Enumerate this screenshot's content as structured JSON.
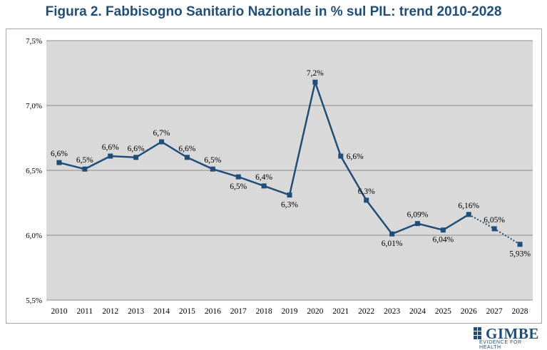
{
  "title": "Figura 2. Fabbisogno Sanitario Nazionale in % sul PIL: trend 2010-2028",
  "logo": {
    "name": "GIMBE",
    "tagline": "EVIDENCE FOR HEALTH",
    "color": "#1f4e79"
  },
  "chart_data": {
    "type": "line",
    "title": "Figura 2. Fabbisogno Sanitario Nazionale in % sul PIL: trend 2010-2028",
    "xlabel": "",
    "ylabel": "",
    "grid": true,
    "legend": "none",
    "ylim": [
      5.5,
      7.5
    ],
    "y_ticks": [
      5.5,
      6.0,
      6.5,
      7.0,
      7.5
    ],
    "y_tick_labels": [
      "5,5%",
      "6,0%",
      "6,5%",
      "7,0%",
      "7,5%"
    ],
    "categories": [
      "2010",
      "2011",
      "2012",
      "2013",
      "2014",
      "2015",
      "2016",
      "2017",
      "2018",
      "2019",
      "2020",
      "2021",
      "2022",
      "2023",
      "2024",
      "2025",
      "2026",
      "2027",
      "2028"
    ],
    "series": [
      {
        "values": [
          6.56,
          6.51,
          6.61,
          6.6,
          6.72,
          6.6,
          6.51,
          6.45,
          6.38,
          6.31,
          7.18,
          6.61,
          6.27,
          6.01,
          6.09,
          6.04,
          6.16,
          6.05,
          5.93
        ],
        "data_labels": [
          "6,6%",
          "6,5%",
          "6,6%",
          "6,6%",
          "6,7%",
          "6,6%",
          "6,5%",
          "6,5%",
          "6,4%",
          "6,3%",
          "7,2%",
          "6,6%",
          "6,3%",
          "6,01%",
          "6,09%",
          "6,04%",
          "6,16%",
          "6,05%",
          "5,93%"
        ],
        "label_position": [
          "above",
          "above",
          "above",
          "above",
          "above",
          "above",
          "above",
          "below",
          "above",
          "below",
          "above",
          "right",
          "above",
          "below",
          "above",
          "below",
          "above",
          "above",
          "below"
        ],
        "solid_until_index": 16,
        "projected_from_index": 16,
        "color": "#1f4e79"
      }
    ]
  }
}
